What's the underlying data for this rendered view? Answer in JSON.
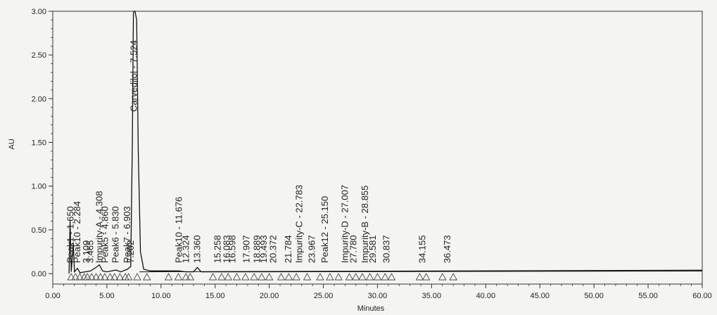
{
  "chart_data": {
    "type": "line",
    "title": "",
    "xlabel": "Minutes",
    "ylabel": "AU",
    "xlim": [
      0,
      60
    ],
    "ylim": [
      -0.12,
      3.0
    ],
    "x_ticks": [
      "0.00",
      "5.00",
      "10.00",
      "15.00",
      "20.00",
      "25.00",
      "30.00",
      "35.00",
      "40.00",
      "45.00",
      "50.00",
      "55.00",
      "60.00"
    ],
    "y_ticks": [
      "0.00",
      "0.50",
      "1.00",
      "1.50",
      "2.00",
      "2.50",
      "3.00"
    ],
    "grid": false,
    "baseline": 0.02,
    "trace": [
      [
        1.5,
        0.0
      ],
      [
        1.6,
        0.6
      ],
      [
        1.7,
        0.02
      ],
      [
        1.9,
        0.35
      ],
      [
        2.0,
        0.02
      ],
      [
        2.28,
        0.06
      ],
      [
        2.5,
        0.01
      ],
      [
        3.0,
        0.02
      ],
      [
        3.5,
        0.03
      ],
      [
        4.0,
        0.07
      ],
      [
        4.3,
        0.1
      ],
      [
        4.6,
        0.03
      ],
      [
        5.0,
        0.02
      ],
      [
        5.83,
        0.04
      ],
      [
        6.3,
        0.02
      ],
      [
        6.9,
        0.05
      ],
      [
        7.2,
        0.08
      ],
      [
        7.35,
        1.5
      ],
      [
        7.45,
        2.98
      ],
      [
        7.52,
        3.0
      ],
      [
        7.6,
        3.0
      ],
      [
        7.75,
        2.9
      ],
      [
        7.9,
        1.4
      ],
      [
        8.1,
        0.25
      ],
      [
        8.4,
        0.05
      ],
      [
        9.0,
        0.03
      ],
      [
        11.68,
        0.03
      ],
      [
        12.3,
        0.02
      ],
      [
        13.0,
        0.02
      ],
      [
        13.36,
        0.07
      ],
      [
        13.7,
        0.02
      ],
      [
        60.0,
        0.03
      ]
    ],
    "peaks": [
      {
        "label": "Peak1 - 1.650",
        "x": 1.65
      },
      {
        "label": "Peak10 - 2.284",
        "x": 2.284
      },
      {
        "label": "3.109",
        "x": 3.109
      },
      {
        "label": "3.465",
        "x": 3.465
      },
      {
        "label": "Impurity-A - 4.308",
        "x": 4.308
      },
      {
        "label": "Peak5 - 4.860",
        "x": 4.86
      },
      {
        "label": "Peak6 - 5.830",
        "x": 5.83
      },
      {
        "label": "Peak7 - 6.903",
        "x": 6.903
      },
      {
        "label": "7.202",
        "x": 7.202
      },
      {
        "label": "Carvedilol - 7.524",
        "x": 7.524
      },
      {
        "label": "Peak10 - 11.676",
        "x": 11.676
      },
      {
        "label": "12.324",
        "x": 12.324
      },
      {
        "label": "13.360",
        "x": 13.36
      },
      {
        "label": "15.258",
        "x": 15.258
      },
      {
        "label": "16.083",
        "x": 16.083
      },
      {
        "label": "16.598",
        "x": 16.598
      },
      {
        "label": "17.907",
        "x": 17.907
      },
      {
        "label": "18.889",
        "x": 18.889
      },
      {
        "label": "19.493",
        "x": 19.493
      },
      {
        "label": "20.372",
        "x": 20.372
      },
      {
        "label": "21.784",
        "x": 21.784
      },
      {
        "label": "Impurity-C - 22.783",
        "x": 22.783
      },
      {
        "label": "23.967",
        "x": 23.967
      },
      {
        "label": "Peak12 - 25.150",
        "x": 25.15
      },
      {
        "label": "Impurity-D - 27.007",
        "x": 27.007
      },
      {
        "label": "27.780",
        "x": 27.78
      },
      {
        "label": "Impurity-B - 28.855",
        "x": 28.855
      },
      {
        "label": "29.581",
        "x": 29.581
      },
      {
        "label": "30.837",
        "x": 30.837
      },
      {
        "label": "34.155",
        "x": 34.155
      },
      {
        "label": "36.473",
        "x": 36.473
      }
    ],
    "markers_x": [
      1.7,
      2.1,
      2.5,
      2.9,
      3.2,
      3.6,
      4.0,
      4.4,
      4.8,
      5.3,
      5.7,
      6.2,
      6.7,
      7.0,
      7.8,
      8.7,
      10.7,
      11.6,
      12.3,
      12.7,
      14.8,
      15.6,
      16.2,
      17.0,
      17.8,
      18.6,
      19.3,
      20.0,
      21.1,
      21.8,
      22.5,
      23.5,
      24.7,
      25.6,
      26.4,
      27.4,
      28.0,
      28.6,
      29.3,
      30.0,
      30.7,
      31.3,
      33.9,
      34.5,
      36.0,
      37.0
    ]
  }
}
